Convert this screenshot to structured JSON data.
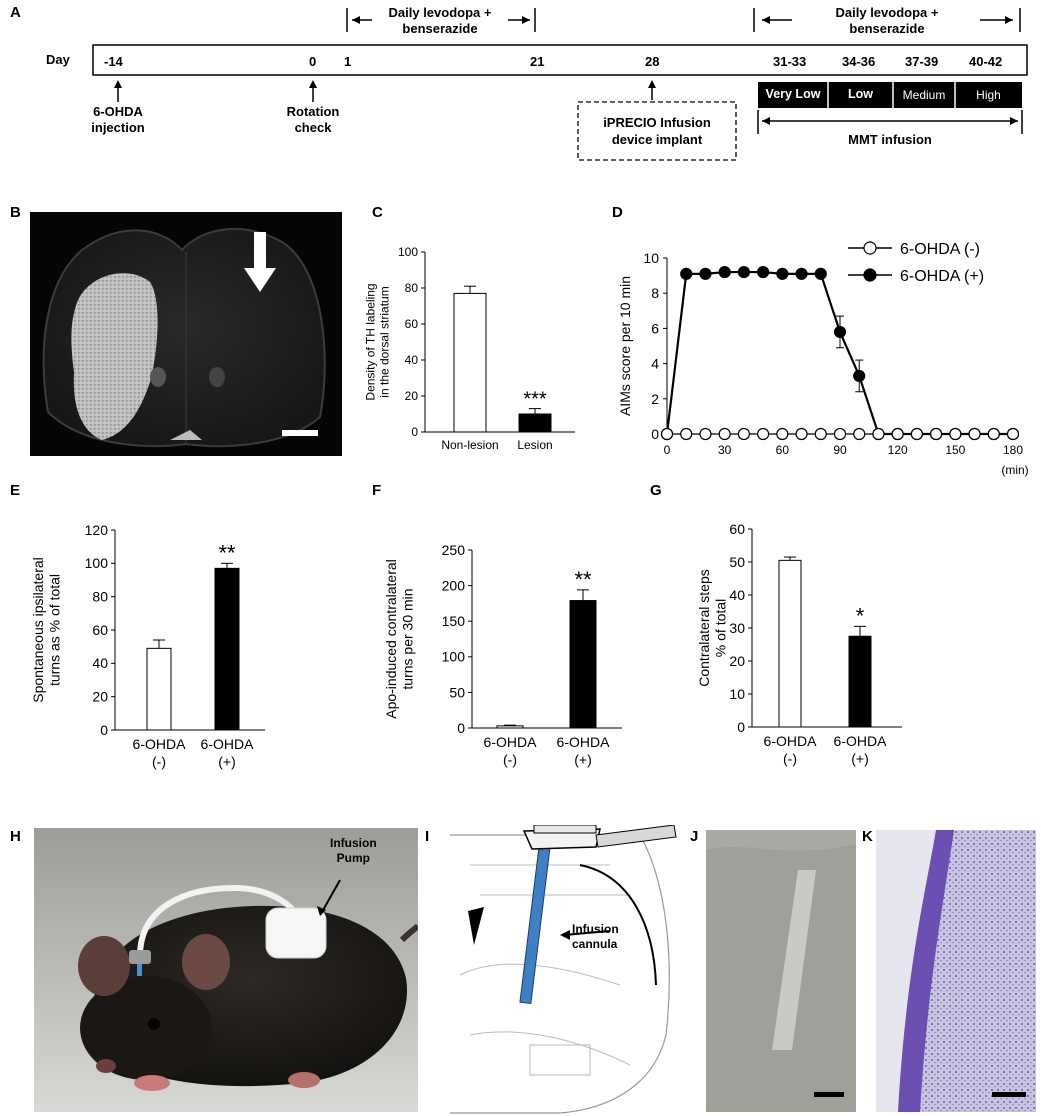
{
  "panels": {
    "A": "A",
    "B": "B",
    "C": "C",
    "D": "D",
    "E": "E",
    "F": "F",
    "G": "G",
    "H": "H",
    "I": "I",
    "J": "J",
    "K": "K"
  },
  "timeline": {
    "day_label": "Day",
    "days": [
      "-14",
      "0",
      "1",
      "21",
      "28",
      "31-33",
      "34-36",
      "37-39",
      "40-42"
    ],
    "bracket1_line1": "Daily levodopa +",
    "bracket1_line2": "benserazide",
    "bracket2_line1": "Daily levodopa +",
    "bracket2_line2": "benserazide",
    "ev_6ohda_1": "6-OHDA",
    "ev_6ohda_2": "injection",
    "ev_rot_1": "Rotation",
    "ev_rot_2": "check",
    "ev_iprecio_1": "iPRECIO Infusion",
    "ev_iprecio_2": "device implant",
    "doses": [
      "Very Low",
      "Low",
      "Medium",
      "High"
    ],
    "mmt": "MMT infusion"
  },
  "chart_data": [
    {
      "id": "C",
      "type": "bar",
      "categories": [
        "Non-lesion",
        "Lesion"
      ],
      "values": [
        77,
        10
      ],
      "errors": [
        4,
        3
      ],
      "colors": [
        "#ffffff",
        "#000000"
      ],
      "ylim": [
        0,
        100
      ],
      "yticks": [
        0,
        20,
        40,
        60,
        80,
        100
      ],
      "ylabel_line1": "Density of TH labeling",
      "ylabel_line2": "in the dorsal striatum",
      "significance": [
        "",
        "***"
      ]
    },
    {
      "id": "D",
      "type": "line",
      "x": [
        0,
        10,
        20,
        30,
        40,
        50,
        60,
        70,
        80,
        90,
        100,
        110,
        120,
        130,
        140,
        150,
        160,
        170,
        180
      ],
      "xlim": [
        0,
        180
      ],
      "ylim": [
        0,
        10
      ],
      "xticks": [
        0,
        30,
        60,
        90,
        120,
        150,
        180
      ],
      "yticks": [
        0,
        2,
        4,
        6,
        8,
        10
      ],
      "xunit": "(min)",
      "ylabel": "AIMs score per 10 min",
      "series": [
        {
          "name": "6-OHDA (-)",
          "fill": "#ffffff",
          "values": [
            0,
            0,
            0,
            0,
            0,
            0,
            0,
            0,
            0,
            0,
            0,
            0,
            0,
            0,
            0,
            0,
            0,
            0,
            0
          ],
          "errors": [
            0,
            0,
            0,
            0,
            0,
            0,
            0,
            0,
            0,
            0,
            0,
            0,
            0,
            0,
            0,
            0,
            0,
            0,
            0
          ]
        },
        {
          "name": "6-OHDA (+)",
          "fill": "#000000",
          "values": [
            0,
            9.1,
            9.1,
            9.2,
            9.2,
            9.2,
            9.1,
            9.1,
            9.1,
            5.8,
            3.3,
            0,
            0,
            0,
            0,
            0,
            0,
            0,
            0
          ],
          "errors": [
            0,
            0.2,
            0.1,
            0.1,
            0.1,
            0.1,
            0.1,
            0.1,
            0.2,
            0.9,
            0.9,
            0,
            0,
            0,
            0,
            0,
            0,
            0,
            0
          ]
        }
      ],
      "legend": "top-right"
    },
    {
      "id": "E",
      "type": "bar",
      "categories": [
        "6-OHDA\n(-)",
        "6-OHDA\n(+)"
      ],
      "values": [
        49,
        97
      ],
      "errors": [
        5,
        3
      ],
      "colors": [
        "#ffffff",
        "#000000"
      ],
      "ylim": [
        0,
        120
      ],
      "yticks": [
        0,
        20,
        40,
        60,
        80,
        100,
        120
      ],
      "ylabel_line1": "Spontaneous ipsilateral",
      "ylabel_line2": "turns as % of total",
      "significance": [
        "",
        "**"
      ]
    },
    {
      "id": "F",
      "type": "bar",
      "categories": [
        "6-OHDA\n(-)",
        "6-OHDA\n(+)"
      ],
      "values": [
        3,
        179
      ],
      "errors": [
        1,
        15
      ],
      "colors": [
        "#ffffff",
        "#000000"
      ],
      "ylim": [
        0,
        250
      ],
      "yticks": [
        0,
        50,
        100,
        150,
        200,
        250
      ],
      "ylabel_line1": "Apo-induced contralateral",
      "ylabel_line2": "turns per 30 min",
      "significance": [
        "",
        "**"
      ]
    },
    {
      "id": "G",
      "type": "bar",
      "categories": [
        "6-OHDA\n(-)",
        "6-OHDA\n(+)"
      ],
      "values": [
        50.5,
        27.5
      ],
      "errors": [
        1,
        3
      ],
      "colors": [
        "#ffffff",
        "#000000"
      ],
      "ylim": [
        0,
        60
      ],
      "yticks": [
        0,
        10,
        20,
        30,
        40,
        50,
        60
      ],
      "ylabel_line1": "Contralateral steps",
      "ylabel_line2": "% of total",
      "significance": [
        "",
        "*"
      ]
    }
  ],
  "photo_labels": {
    "pump_1": "Infusion",
    "pump_2": "Pump",
    "cannula_1": "Infusion",
    "cannula_2": "cannula"
  }
}
